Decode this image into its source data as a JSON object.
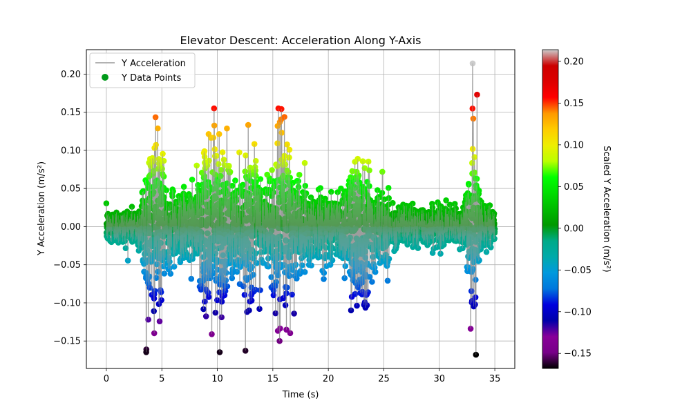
{
  "chart_data": {
    "type": "scatter",
    "title": "Elevator Descent: Acceleration Along Y-Axis",
    "xlabel": "Time (s)",
    "ylabel": "Y Acceleration (m/s²)",
    "xlim": [
      -1.8,
      36.8
    ],
    "ylim": [
      -0.186,
      0.232
    ],
    "x_ticks": [
      0,
      5,
      10,
      15,
      20,
      25,
      30,
      35
    ],
    "y_ticks": [
      -0.15,
      -0.1,
      -0.05,
      0.0,
      0.05,
      0.1,
      0.15,
      0.2
    ],
    "grid": true,
    "legend": {
      "placement": "top-left",
      "entries": [
        "Y Acceleration",
        "Y Data Points"
      ]
    },
    "series": [
      {
        "name": "Y Acceleration",
        "kind": "line",
        "color": "#999999",
        "samples": 3500,
        "x_range": [
          0,
          35
        ]
      },
      {
        "name": "Y Data Points",
        "kind": "scatter",
        "colormap": "nipy_spectral"
      }
    ],
    "bursts": [
      {
        "center": 4.3,
        "width": 0.9,
        "amp": 0.085
      },
      {
        "center": 9.8,
        "width": 1.2,
        "amp": 0.1
      },
      {
        "center": 13.0,
        "width": 1.0,
        "amp": 0.055
      },
      {
        "center": 16.0,
        "width": 1.1,
        "amp": 0.095
      },
      {
        "center": 22.8,
        "width": 1.0,
        "amp": 0.075
      },
      {
        "center": 33.0,
        "width": 0.5,
        "amp": 0.11
      }
    ],
    "labeled_extremes": [
      {
        "x": 3.6,
        "y": -0.161
      },
      {
        "x": 9.7,
        "y": 0.155
      },
      {
        "x": 15.5,
        "y": 0.155
      },
      {
        "x": 15.6,
        "y": -0.15
      },
      {
        "x": 33.0,
        "y": 0.214
      },
      {
        "x": 33.4,
        "y": 0.173
      },
      {
        "x": 33.3,
        "y": -0.168
      },
      {
        "x": 9.5,
        "y": -0.141
      }
    ],
    "colorbar": {
      "label": "Scaled Y Acceleration (m/s²)",
      "range": [
        -0.168,
        0.214
      ],
      "ticks": [
        -0.15,
        -0.1,
        -0.05,
        0.0,
        0.05,
        0.1,
        0.15,
        0.2
      ],
      "colormap": "nipy_spectral"
    }
  }
}
